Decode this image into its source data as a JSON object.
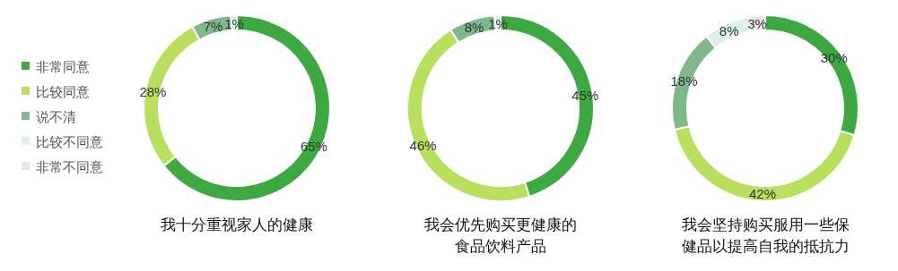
{
  "chart_data": [
    {
      "type": "donut",
      "title": "我十分重视家人的健康",
      "legend": "left",
      "categories": [
        "非常同意",
        "比较同意",
        "说不清",
        "比较不同意",
        "非常不同意"
      ],
      "values": [
        65,
        28,
        7,
        1,
        null
      ],
      "colors": [
        "#3ea843",
        "#b8e05e",
        "#80b88c",
        "#dcf2e8",
        "#e6e6e6"
      ],
      "value_labels": [
        "65%",
        "28%",
        "7%",
        "1%",
        null
      ]
    },
    {
      "type": "donut",
      "title": "我会优先购买更健康的",
      "subtitle": "食品饮料产品",
      "values": [
        45,
        46,
        8,
        1
      ],
      "colors": [
        "#3ea843",
        "#b8e05e",
        "#80b88c",
        "#dcf2e8"
      ],
      "value_labels": [
        "45%",
        "46%",
        "8%",
        "1%"
      ]
    },
    {
      "type": "donut",
      "title": "我会坚持购买服用一些保",
      "subtitle": "健品以提高自我的抵抗力",
      "values": [
        30,
        42,
        18,
        8,
        3
      ],
      "colors": [
        "#3ea843",
        "#b8e05e",
        "#80b88c",
        "#dcf2e8",
        "#e6e6e6"
      ],
      "value_labels": [
        "30%",
        "42%",
        "18%",
        "8%",
        "3%"
      ]
    }
  ]
}
